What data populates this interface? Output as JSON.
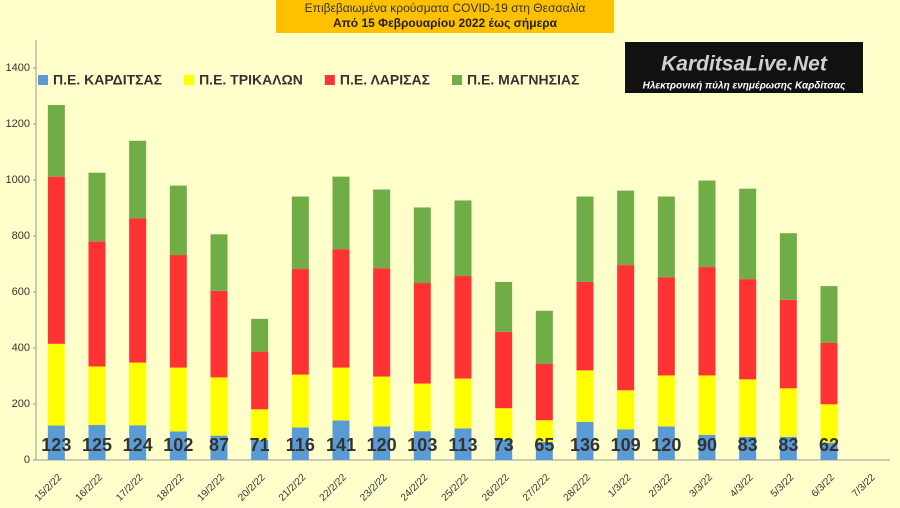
{
  "chart_data": {
    "type": "stacked_bar",
    "title": "Επιβεβαιωμένα κρούσματα COVID-19 στη Θεσσαλία",
    "subtitle": "Από 15 Φεβρουαρίου 2022 έως σήμερα",
    "logo": {
      "name": "KarditsaLive.Net",
      "tagline": "Ηλεκτρονική πύλη ενημέρωσης Καρδίτσας"
    },
    "categories": [
      "15/2/22",
      "16/2/22",
      "17/2/22",
      "18/2/22",
      "19/2/22",
      "20/2/22",
      "21/2/22",
      "22/2/22",
      "23/2/22",
      "24/2/22",
      "25/2/22",
      "26/2/22",
      "27/2/22",
      "28/2/22",
      "1/3/22",
      "2/3/22",
      "3/3/22",
      "4/3/22",
      "5/3/22",
      "6/3/22",
      "7/3/22"
    ],
    "series": [
      {
        "name": "Π.Ε. ΚΑΡΔΙΤΣΑΣ",
        "color": "#5b9bd5",
        "values": [
          123,
          125,
          124,
          102,
          87,
          71,
          116,
          141,
          120,
          103,
          113,
          73,
          65,
          136,
          109,
          120,
          90,
          83,
          83,
          62,
          null
        ]
      },
      {
        "name": "Π.Ε. ΤΡΙΚΑΛΩΝ",
        "color": "#ffff00",
        "values": [
          292,
          209,
          224,
          228,
          208,
          110,
          189,
          189,
          178,
          170,
          178,
          112,
          77,
          184,
          140,
          182,
          212,
          205,
          173,
          137,
          null
        ]
      },
      {
        "name": "Π.Ε. ΛΑΡΙΣΑΣ",
        "color": "#ff3333",
        "values": [
          597,
          447,
          515,
          402,
          309,
          206,
          377,
          423,
          387,
          359,
          366,
          273,
          202,
          316,
          447,
          351,
          387,
          358,
          316,
          220,
          null
        ]
      },
      {
        "name": "Π.Ε. ΜΑΓΝΗΣΙΑΣ",
        "color": "#70ad47",
        "values": [
          256,
          245,
          277,
          248,
          202,
          117,
          259,
          259,
          281,
          270,
          270,
          178,
          189,
          305,
          266,
          288,
          309,
          323,
          238,
          202,
          null
        ]
      }
    ],
    "ylim": [
      0,
      1500
    ],
    "yticks": [
      0,
      200,
      400,
      600,
      800,
      1000,
      1200,
      1400
    ],
    "grid": false
  }
}
